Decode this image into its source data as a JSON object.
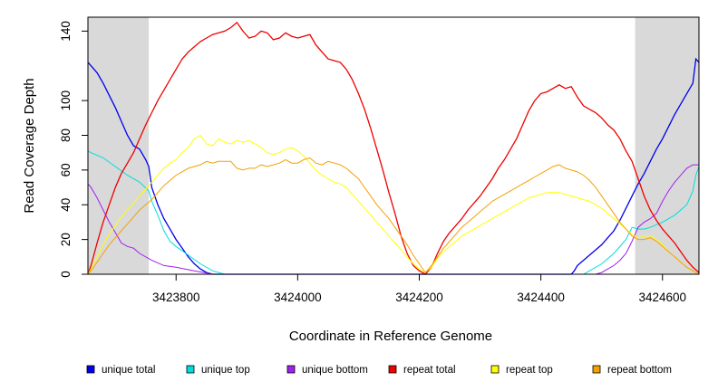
{
  "chart_data": {
    "type": "line",
    "title": "",
    "xlabel": "Coordinate in Reference Genome",
    "ylabel": "Read Coverage Depth",
    "xlim": [
      3423655,
      3424660
    ],
    "ylim": [
      0,
      150
    ],
    "xticks": [
      3423800,
      3424000,
      3424200,
      3424400,
      3424600
    ],
    "yticks": [
      0,
      20,
      40,
      60,
      80,
      100,
      140
    ],
    "grid": false,
    "shaded_regions": [
      {
        "x": [
          3423655,
          3423755
        ],
        "color": "#d9d9d9"
      },
      {
        "x": [
          3424555,
          3424660
        ],
        "color": "#d9d9d9"
      }
    ],
    "legend_position": "bottom",
    "series": [
      {
        "name": "unique total",
        "color": "#0000ee",
        "x": [
          3423655,
          3423660,
          3423670,
          3423680,
          3423690,
          3423700,
          3423710,
          3423720,
          3423730,
          3423740,
          3423750,
          3423755,
          3423760,
          3423770,
          3423780,
          3423790,
          3423800,
          3423810,
          3423820,
          3423830,
          3423840,
          3423850,
          3423860,
          3423870,
          3424000,
          3424200,
          3424450,
          3424455,
          3424460,
          3424470,
          3424480,
          3424490,
          3424500,
          3424510,
          3424520,
          3424530,
          3424540,
          3424550,
          3424560,
          3424570,
          3424580,
          3424590,
          3424600,
          3424610,
          3424620,
          3424630,
          3424640,
          3424650,
          3424655,
          3424660
        ],
        "y": [
          122,
          120,
          116,
          110,
          103,
          96,
          88,
          80,
          74,
          72,
          66,
          62,
          50,
          40,
          32,
          26,
          20,
          15,
          10,
          6,
          3,
          1,
          0,
          0,
          0,
          0,
          0,
          2,
          5,
          8,
          11,
          14,
          17,
          21,
          25,
          31,
          38,
          45,
          52,
          58,
          65,
          72,
          78,
          85,
          92,
          98,
          104,
          110,
          124,
          122
        ]
      },
      {
        "name": "unique top",
        "color": "#00dddd",
        "x": [
          3423655,
          3423660,
          3423680,
          3423700,
          3423720,
          3423740,
          3423755,
          3423760,
          3423770,
          3423780,
          3423790,
          3423800,
          3423820,
          3423840,
          3423860,
          3423880,
          3424000,
          3424200,
          3424470,
          3424480,
          3424500,
          3424520,
          3424540,
          3424550,
          3424560,
          3424570,
          3424580,
          3424600,
          3424620,
          3424640,
          3424650,
          3424655,
          3424660
        ],
        "y": [
          71,
          70,
          67,
          62,
          57,
          53,
          48,
          42,
          34,
          25,
          19,
          16,
          11,
          6,
          2,
          0,
          0,
          0,
          0,
          2,
          6,
          12,
          20,
          27,
          26,
          26,
          27,
          30,
          34,
          40,
          48,
          57,
          62
        ]
      },
      {
        "name": "unique bottom",
        "color": "#a020f0",
        "x": [
          3423655,
          3423660,
          3423670,
          3423680,
          3423690,
          3423700,
          3423710,
          3423720,
          3423730,
          3423740,
          3423760,
          3423780,
          3423800,
          3423830,
          3423860,
          3424000,
          3424200,
          3424490,
          3424500,
          3424510,
          3424520,
          3424530,
          3424540,
          3424550,
          3424560,
          3424570,
          3424580,
          3424590,
          3424600,
          3424610,
          3424620,
          3424630,
          3424640,
          3424650,
          3424660
        ],
        "y": [
          52,
          50,
          44,
          37,
          30,
          24,
          18,
          16,
          15,
          12,
          8,
          5,
          4,
          2,
          0,
          0,
          0,
          0,
          1,
          3,
          5,
          8,
          12,
          19,
          27,
          30,
          32,
          35,
          42,
          48,
          53,
          57,
          61,
          63,
          63
        ]
      },
      {
        "name": "repeat total",
        "color": "#ee0000",
        "x": [
          3423655,
          3423660,
          3423670,
          3423680,
          3423690,
          3423700,
          3423710,
          3423720,
          3423730,
          3423740,
          3423750,
          3423760,
          3423770,
          3423780,
          3423790,
          3423800,
          3423810,
          3423820,
          3423830,
          3423840,
          3423850,
          3423860,
          3423870,
          3423880,
          3423890,
          3423900,
          3423910,
          3423920,
          3423930,
          3423940,
          3423950,
          3423960,
          3423970,
          3423980,
          3423990,
          3424000,
          3424010,
          3424020,
          3424030,
          3424040,
          3424050,
          3424060,
          3424070,
          3424080,
          3424090,
          3424100,
          3424110,
          3424120,
          3424130,
          3424140,
          3424150,
          3424160,
          3424170,
          3424180,
          3424190,
          3424200,
          3424210,
          3424220,
          3424230,
          3424240,
          3424250,
          3424260,
          3424270,
          3424280,
          3424290,
          3424300,
          3424310,
          3424320,
          3424330,
          3424340,
          3424350,
          3424360,
          3424370,
          3424380,
          3424390,
          3424400,
          3424410,
          3424420,
          3424430,
          3424440,
          3424450,
          3424460,
          3424470,
          3424480,
          3424490,
          3424500,
          3424510,
          3424520,
          3424530,
          3424540,
          3424550,
          3424560,
          3424570,
          3424580,
          3424590,
          3424600,
          3424610,
          3424620,
          3424630,
          3424640,
          3424650,
          3424660
        ],
        "y": [
          0,
          5,
          18,
          30,
          40,
          50,
          58,
          64,
          70,
          78,
          86,
          93,
          100,
          106,
          112,
          118,
          124,
          128,
          131,
          134,
          136,
          138,
          139,
          140,
          142,
          145,
          140,
          136,
          137,
          140,
          139,
          135,
          136,
          139,
          137,
          136,
          137,
          138,
          132,
          128,
          124,
          123,
          122,
          118,
          112,
          104,
          95,
          84,
          72,
          60,
          47,
          35,
          22,
          12,
          5,
          2,
          0,
          4,
          12,
          19,
          24,
          28,
          32,
          37,
          41,
          45,
          50,
          55,
          61,
          66,
          72,
          78,
          86,
          94,
          100,
          104,
          105,
          107,
          109,
          107,
          108,
          102,
          97,
          95,
          93,
          90,
          86,
          83,
          78,
          71,
          65,
          55,
          45,
          37,
          31,
          26,
          22,
          18,
          13,
          8,
          4,
          1
        ]
      },
      {
        "name": "repeat top",
        "color": "#ffff00",
        "x": [
          3423655,
          3423660,
          3423670,
          3423680,
          3423690,
          3423700,
          3423710,
          3423720,
          3423730,
          3423740,
          3423750,
          3423760,
          3423770,
          3423780,
          3423790,
          3423800,
          3423810,
          3423820,
          3423830,
          3423840,
          3423850,
          3423860,
          3423870,
          3423880,
          3423890,
          3423900,
          3423910,
          3423920,
          3423930,
          3423940,
          3423950,
          3423960,
          3423970,
          3423980,
          3423990,
          3424000,
          3424010,
          3424020,
          3424030,
          3424040,
          3424050,
          3424060,
          3424070,
          3424080,
          3424090,
          3424100,
          3424110,
          3424120,
          3424130,
          3424140,
          3424150,
          3424160,
          3424170,
          3424180,
          3424190,
          3424200,
          3424210,
          3424220,
          3424230,
          3424240,
          3424250,
          3424260,
          3424270,
          3424280,
          3424290,
          3424300,
          3424310,
          3424320,
          3424330,
          3424340,
          3424350,
          3424360,
          3424370,
          3424380,
          3424390,
          3424400,
          3424410,
          3424420,
          3424430,
          3424440,
          3424450,
          3424460,
          3424470,
          3424480,
          3424490,
          3424500,
          3424510,
          3424520,
          3424530,
          3424540,
          3424550,
          3424560,
          3424570,
          3424580,
          3424590,
          3424600,
          3424610,
          3424620,
          3424630,
          3424640,
          3424650,
          3424660
        ],
        "y": [
          0,
          3,
          10,
          17,
          23,
          28,
          33,
          37,
          41,
          45,
          49,
          53,
          57,
          61,
          64,
          66,
          70,
          73,
          78,
          80,
          75,
          74,
          78,
          76,
          75,
          77,
          76,
          77,
          75,
          73,
          70,
          69,
          70,
          72,
          73,
          71,
          68,
          64,
          60,
          57,
          55,
          53,
          52,
          50,
          46,
          42,
          38,
          34,
          30,
          26,
          22,
          18,
          14,
          10,
          6,
          3,
          1,
          4,
          9,
          13,
          16,
          19,
          22,
          24,
          26,
          28,
          30,
          32,
          34,
          36,
          38,
          40,
          42,
          44,
          45,
          46,
          47,
          47,
          47,
          46,
          45,
          44,
          43,
          42,
          40,
          38,
          35,
          32,
          29,
          26,
          23,
          21,
          22,
          22,
          20,
          17,
          13,
          10,
          7,
          4,
          2,
          0
        ]
      },
      {
        "name": "repeat bottom",
        "color": "#f5a000",
        "x": [
          3423655,
          3423660,
          3423670,
          3423680,
          3423690,
          3423700,
          3423710,
          3423720,
          3423730,
          3423740,
          3423750,
          3423760,
          3423770,
          3423780,
          3423790,
          3423800,
          3423810,
          3423820,
          3423830,
          3423840,
          3423850,
          3423860,
          3423870,
          3423880,
          3423890,
          3423900,
          3423910,
          3423920,
          3423930,
          3423940,
          3423950,
          3423960,
          3423970,
          3423980,
          3423990,
          3424000,
          3424010,
          3424020,
          3424030,
          3424040,
          3424050,
          3424060,
          3424070,
          3424080,
          3424090,
          3424100,
          3424110,
          3424120,
          3424130,
          3424140,
          3424150,
          3424160,
          3424170,
          3424180,
          3424190,
          3424200,
          3424210,
          3424220,
          3424230,
          3424240,
          3424250,
          3424260,
          3424270,
          3424280,
          3424290,
          3424300,
          3424310,
          3424320,
          3424330,
          3424340,
          3424350,
          3424360,
          3424370,
          3424380,
          3424390,
          3424400,
          3424410,
          3424420,
          3424430,
          3424440,
          3424450,
          3424460,
          3424470,
          3424480,
          3424490,
          3424500,
          3424510,
          3424520,
          3424530,
          3424540,
          3424550,
          3424560,
          3424570,
          3424580,
          3424590,
          3424600,
          3424610,
          3424620,
          3424630,
          3424640,
          3424650,
          3424660
        ],
        "y": [
          0,
          2,
          7,
          12,
          17,
          21,
          25,
          29,
          33,
          37,
          40,
          43,
          47,
          51,
          54,
          57,
          59,
          61,
          62,
          63,
          65,
          64,
          65,
          65,
          65,
          61,
          60,
          61,
          61,
          63,
          62,
          63,
          64,
          66,
          64,
          64,
          66,
          67,
          64,
          63,
          65,
          64,
          63,
          61,
          58,
          55,
          50,
          45,
          40,
          36,
          32,
          27,
          22,
          17,
          11,
          6,
          1,
          5,
          10,
          15,
          19,
          23,
          27,
          30,
          33,
          36,
          39,
          42,
          44,
          46,
          48,
          50,
          52,
          54,
          56,
          58,
          60,
          62,
          63,
          61,
          60,
          59,
          57,
          54,
          50,
          45,
          40,
          35,
          30,
          26,
          22,
          20,
          20,
          21,
          19,
          16,
          13,
          10,
          7,
          4,
          2,
          0
        ]
      }
    ]
  }
}
